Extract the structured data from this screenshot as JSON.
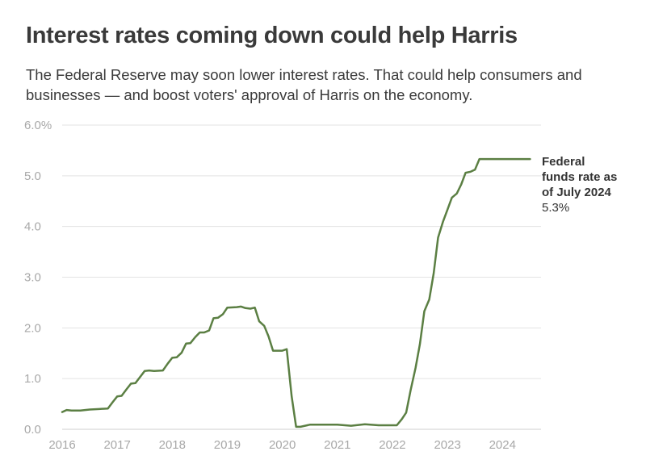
{
  "title": "Interest rates coming down could help Harris",
  "subtitle": "The Federal Reserve may soon lower interest rates. That could help consumers and businesses — and boost voters' approval of Harris on the economy.",
  "chart_data": {
    "type": "line",
    "title": "Interest rates coming down could help Harris",
    "subtitle": "The Federal Reserve may soon lower interest rates. That could help consumers and businesses — and boost voters' approval of Harris on the economy.",
    "xlabel": "",
    "ylabel": "",
    "xlim": [
      2016.0,
      2024.7
    ],
    "ylim": [
      0,
      6
    ],
    "x_ticks": [
      2016,
      2017,
      2018,
      2019,
      2020,
      2021,
      2022,
      2023,
      2024
    ],
    "y_ticks": [
      {
        "value": 0,
        "label": "0.0"
      },
      {
        "value": 1,
        "label": "1.0"
      },
      {
        "value": 2,
        "label": "2.0"
      },
      {
        "value": 3,
        "label": "3.0"
      },
      {
        "value": 4,
        "label": "4.0"
      },
      {
        "value": 5,
        "label": "5.0"
      },
      {
        "value": 6,
        "label": "6.0%"
      }
    ],
    "grid": true,
    "colors": {
      "line": "#5b7f43",
      "grid": "#e3e3e3",
      "tick_text": "#a8a8a8",
      "annotation": "#333333"
    },
    "series": [
      {
        "x": [
          2016.0,
          2016.08,
          2016.17,
          2016.33,
          2016.5,
          2016.67,
          2016.83,
          2016.92,
          2017.0,
          2017.08,
          2017.17,
          2017.25,
          2017.33,
          2017.42,
          2017.5,
          2017.58,
          2017.67,
          2017.83,
          2017.92,
          2018.0,
          2018.08,
          2018.17,
          2018.25,
          2018.33,
          2018.42,
          2018.5,
          2018.58,
          2018.67,
          2018.75,
          2018.83,
          2018.92,
          2019.0,
          2019.17,
          2019.25,
          2019.33,
          2019.42,
          2019.5,
          2019.58,
          2019.67,
          2019.75,
          2019.83,
          2019.92,
          2020.0,
          2020.08,
          2020.17,
          2020.25,
          2020.33,
          2020.5,
          2020.67,
          2021.0,
          2021.25,
          2021.5,
          2021.75,
          2022.0,
          2022.08,
          2022.17,
          2022.25,
          2022.33,
          2022.42,
          2022.5,
          2022.58,
          2022.67,
          2022.75,
          2022.83,
          2022.92,
          2023.0,
          2023.08,
          2023.17,
          2023.25,
          2023.33,
          2023.42,
          2023.5,
          2023.58,
          2023.75,
          2024.0,
          2024.25,
          2024.5
        ],
        "y": [
          0.34,
          0.38,
          0.37,
          0.37,
          0.39,
          0.4,
          0.41,
          0.54,
          0.65,
          0.66,
          0.79,
          0.9,
          0.91,
          1.04,
          1.15,
          1.16,
          1.15,
          1.16,
          1.3,
          1.41,
          1.42,
          1.51,
          1.69,
          1.7,
          1.82,
          1.91,
          1.91,
          1.95,
          2.19,
          2.2,
          2.27,
          2.4,
          2.41,
          2.42,
          2.39,
          2.38,
          2.4,
          2.13,
          2.04,
          1.83,
          1.55,
          1.55,
          1.55,
          1.58,
          0.65,
          0.05,
          0.05,
          0.09,
          0.09,
          0.09,
          0.07,
          0.1,
          0.08,
          0.08,
          0.08,
          0.2,
          0.33,
          0.77,
          1.21,
          1.68,
          2.33,
          2.56,
          3.08,
          3.78,
          4.1,
          4.33,
          4.57,
          4.65,
          4.83,
          5.06,
          5.08,
          5.12,
          5.33,
          5.33,
          5.33,
          5.33,
          5.33
        ]
      }
    ],
    "annotation": {
      "lines": [
        "Federal",
        "funds rate as",
        "of July 2024"
      ],
      "value": "5.3%"
    }
  }
}
